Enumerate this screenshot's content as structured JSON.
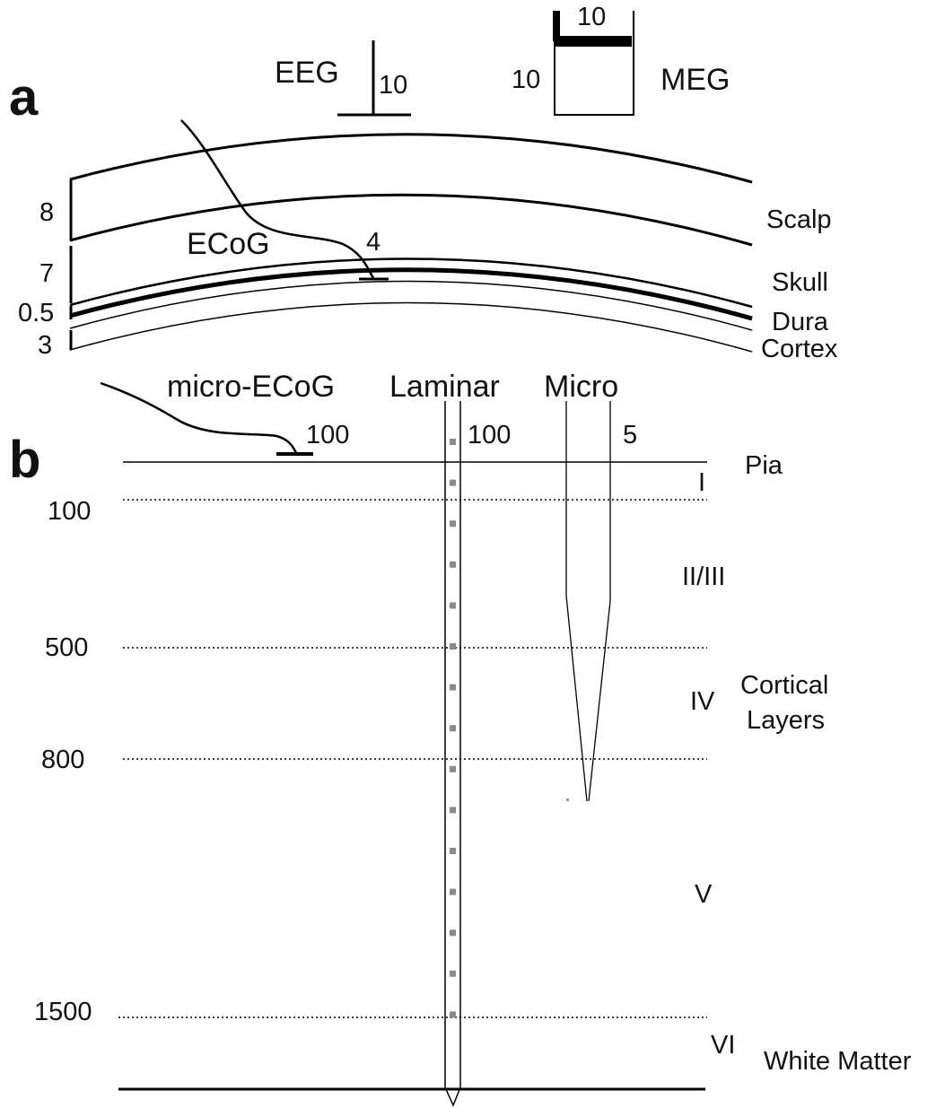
{
  "panel_a": {
    "letter": "a",
    "eeg": {
      "label": "EEG",
      "value": "10"
    },
    "meg": {
      "label": "MEG",
      "value_top": "10",
      "value_left": "10"
    },
    "ecog": {
      "label": "ECoG",
      "value": "4"
    },
    "thicknesses": [
      "8",
      "7",
      "0.5",
      "3"
    ],
    "layers": [
      "Scalp",
      "Skull",
      "Dura",
      "Cortex"
    ]
  },
  "panel_b": {
    "letter": "b",
    "probes": {
      "micro_ecog": {
        "label": "micro-ECoG",
        "value": "100"
      },
      "laminar": {
        "label": "Laminar",
        "value": "100"
      },
      "micro": {
        "label": "Micro",
        "value": "5"
      }
    },
    "depths": [
      "100",
      "500",
      "800",
      "1500"
    ],
    "cortical_layers": [
      "I",
      "II/III",
      "IV",
      "V",
      "VI"
    ],
    "labels": {
      "pia": "Pia",
      "cortical_layers_line1": "Cortical",
      "cortical_layers_line2": "Layers",
      "white_matter": "White Matter"
    }
  }
}
